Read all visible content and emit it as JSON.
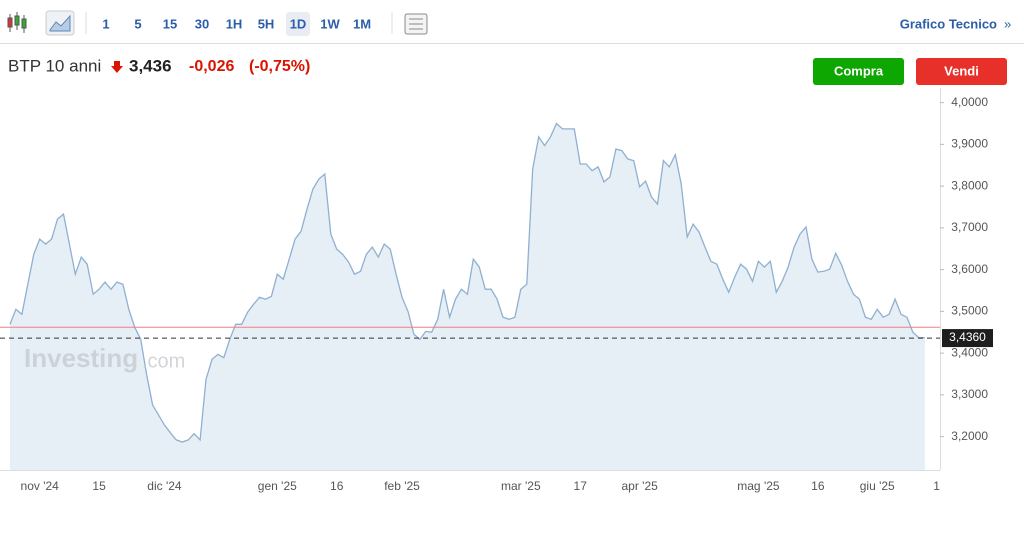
{
  "toolbar": {
    "intervals": [
      "1",
      "5",
      "15",
      "30",
      "1H",
      "5H",
      "1D",
      "1W",
      "1M"
    ],
    "technical": "Grafico Tecnico",
    "technical_arrow": "»"
  },
  "header": {
    "instrument": "BTP 10 anni",
    "price": "3,436",
    "change": "-0,026",
    "change_pct": "(-0,75%)"
  },
  "buttons": {
    "buy": "Compra",
    "sell": "Vendi"
  },
  "watermark": {
    "brand": "Investing",
    "suffix": ".com"
  },
  "chart_data": {
    "type": "area",
    "color": "#8fb0d0",
    "fill": "#e6eef6",
    "categories": [
      null,
      null,
      null,
      null,
      null,
      "nov '24",
      null,
      null,
      null,
      null,
      null,
      null,
      null,
      null,
      null,
      "15",
      null,
      null,
      null,
      null,
      null,
      null,
      null,
      null,
      null,
      null,
      "dic '24",
      null,
      null,
      null,
      null,
      null,
      null,
      null,
      null,
      null,
      null,
      null,
      null,
      null,
      null,
      null,
      null,
      null,
      null,
      "gen '25",
      null,
      null,
      null,
      null,
      null,
      null,
      null,
      null,
      null,
      "16",
      null,
      null,
      null,
      null,
      null,
      null,
      null,
      null,
      null,
      null,
      "feb '25",
      null,
      null,
      null,
      null,
      null,
      null,
      null,
      null,
      null,
      null,
      null,
      null,
      null,
      null,
      null,
      null,
      null,
      null,
      null,
      "mar '25",
      null,
      null,
      null,
      null,
      null,
      null,
      null,
      null,
      null,
      "17",
      null,
      null,
      null,
      null,
      null,
      null,
      null,
      null,
      null,
      "apr '25",
      null,
      null,
      null,
      null,
      null,
      null,
      null,
      null,
      null,
      null,
      null,
      null,
      null,
      null,
      null,
      null,
      null,
      null,
      null,
      "mag '25",
      null,
      null,
      null,
      null,
      null,
      null,
      null,
      null,
      null,
      "16",
      null,
      null,
      null,
      null,
      null,
      null,
      null,
      null,
      null,
      "giu '25",
      null,
      null,
      null,
      null,
      null,
      null,
      null,
      null,
      null,
      "1"
    ],
    "values": [
      3.469,
      3.505,
      3.493,
      3.565,
      3.637,
      3.673,
      3.661,
      3.673,
      3.721,
      3.733,
      3.661,
      3.589,
      3.63,
      3.613,
      3.541,
      3.553,
      3.57,
      3.553,
      3.57,
      3.565,
      3.505,
      3.462,
      3.433,
      3.349,
      3.276,
      3.252,
      3.228,
      3.209,
      3.192,
      3.187,
      3.192,
      3.207,
      3.192,
      3.337,
      3.385,
      3.397,
      3.389,
      3.433,
      3.469,
      3.469,
      3.498,
      3.517,
      3.534,
      3.529,
      3.536,
      3.589,
      3.577,
      3.625,
      3.673,
      3.692,
      3.745,
      3.793,
      3.817,
      3.829,
      3.685,
      3.649,
      3.637,
      3.618,
      3.589,
      3.596,
      3.637,
      3.654,
      3.63,
      3.661,
      3.649,
      3.589,
      3.534,
      3.5,
      3.445,
      3.433,
      3.452,
      3.45,
      3.481,
      3.553,
      3.486,
      3.529,
      3.553,
      3.541,
      3.625,
      3.606,
      3.553,
      3.553,
      3.529,
      3.486,
      3.481,
      3.486,
      3.553,
      3.565,
      3.841,
      3.918,
      3.897,
      3.918,
      3.95,
      3.937,
      3.937,
      3.937,
      3.853,
      3.853,
      3.837,
      3.846,
      3.81,
      3.822,
      3.889,
      3.885,
      3.865,
      3.861,
      3.798,
      3.812,
      3.774,
      3.757,
      3.861,
      3.846,
      3.875,
      3.805,
      3.678,
      3.709,
      3.69,
      3.654,
      3.62,
      3.613,
      3.577,
      3.546,
      3.582,
      3.613,
      3.601,
      3.572,
      3.62,
      3.606,
      3.62,
      3.546,
      3.572,
      3.606,
      3.654,
      3.685,
      3.702,
      3.625,
      3.594,
      3.596,
      3.601,
      3.639,
      3.611,
      3.572,
      3.541,
      3.529,
      3.486,
      3.481,
      3.505,
      3.486,
      3.493,
      3.529,
      3.493,
      3.486,
      3.45,
      3.437,
      3.437,
      null,
      null
    ],
    "ylim": [
      3.12,
      4.035
    ],
    "yticks": [
      {
        "value": 4,
        "label": "4,0000"
      },
      {
        "value": 3.9,
        "label": "3,9000"
      },
      {
        "value": 3.8,
        "label": "3,8000"
      },
      {
        "value": 3.7,
        "label": "3,7000"
      },
      {
        "value": 3.6,
        "label": "3,6000"
      },
      {
        "value": 3.5,
        "label": "3,5000"
      },
      {
        "value": 3.4,
        "label": "3,4000"
      },
      {
        "value": 3.3,
        "label": "3,3000"
      },
      {
        "value": 3.2,
        "label": "3,2000"
      }
    ],
    "last": {
      "value": 3.436,
      "label": "3,4360"
    },
    "prev_close": 3.462
  }
}
